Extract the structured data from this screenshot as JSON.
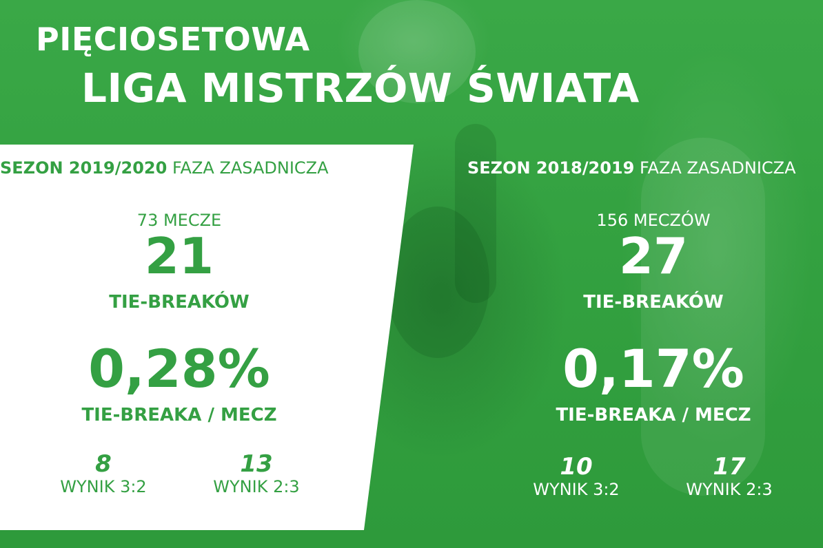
{
  "header": {
    "line1": "PIĘCIOSETOWA",
    "line2": "LIGA MISTRZÓW ŚWIATA"
  },
  "left_panel": {
    "season_bold": "SEZON 2019/2020",
    "season_rest": "FAZA ZASADNICZA",
    "matches": "73 MECZE",
    "tiebreaks_count": "21",
    "tiebreaks_label": "TIE-BREAKÓW",
    "ratio": "0,28%",
    "ratio_label": "TIE-BREAKA / MECZ",
    "result_a_count": "8",
    "result_a_label": "WYNIK 3:2",
    "result_b_count": "13",
    "result_b_label": "WYNIK 2:3"
  },
  "right_panel": {
    "season_bold": "SEZON 2018/2019",
    "season_rest": "FAZA ZASADNICZA",
    "matches": "156 MECZÓW",
    "tiebreaks_count": "27",
    "tiebreaks_label": "TIE-BREAKÓW",
    "ratio": "0,17%",
    "ratio_label": "TIE-BREAKA / MECZ",
    "result_a_count": "10",
    "result_a_label": "WYNIK 3:2",
    "result_b_count": "17",
    "result_b_label": "WYNIK 2:3"
  },
  "colors": {
    "brand_green": "#34a043",
    "background_green": "#2f9e3c",
    "white": "#ffffff"
  }
}
